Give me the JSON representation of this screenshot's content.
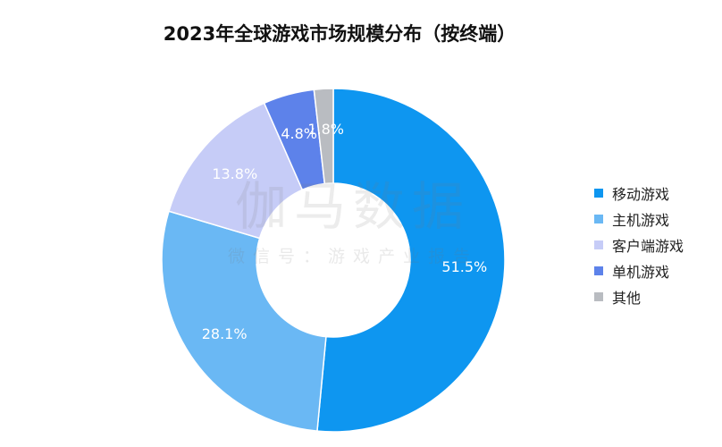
{
  "chart_data": {
    "type": "pie",
    "title": "2023年全球游戏市场规模分布（按终端）",
    "categories": [
      "移动游戏",
      "主机游戏",
      "客户端游戏",
      "单机游戏",
      "其他"
    ],
    "values": [
      51.5,
      28.1,
      13.8,
      4.8,
      1.8
    ],
    "value_labels": [
      "51.5%",
      "28.1%",
      "13.8%",
      "4.8%",
      "1.8%"
    ],
    "unit": "%",
    "colors": [
      "#0e96f0",
      "#6ab8f4",
      "#c6ccf7",
      "#5d82ea",
      "#b9bcc1"
    ],
    "legend_position": "right"
  },
  "watermark": {
    "main": "伽马数据",
    "sub": "微信号：游戏产业报告"
  }
}
